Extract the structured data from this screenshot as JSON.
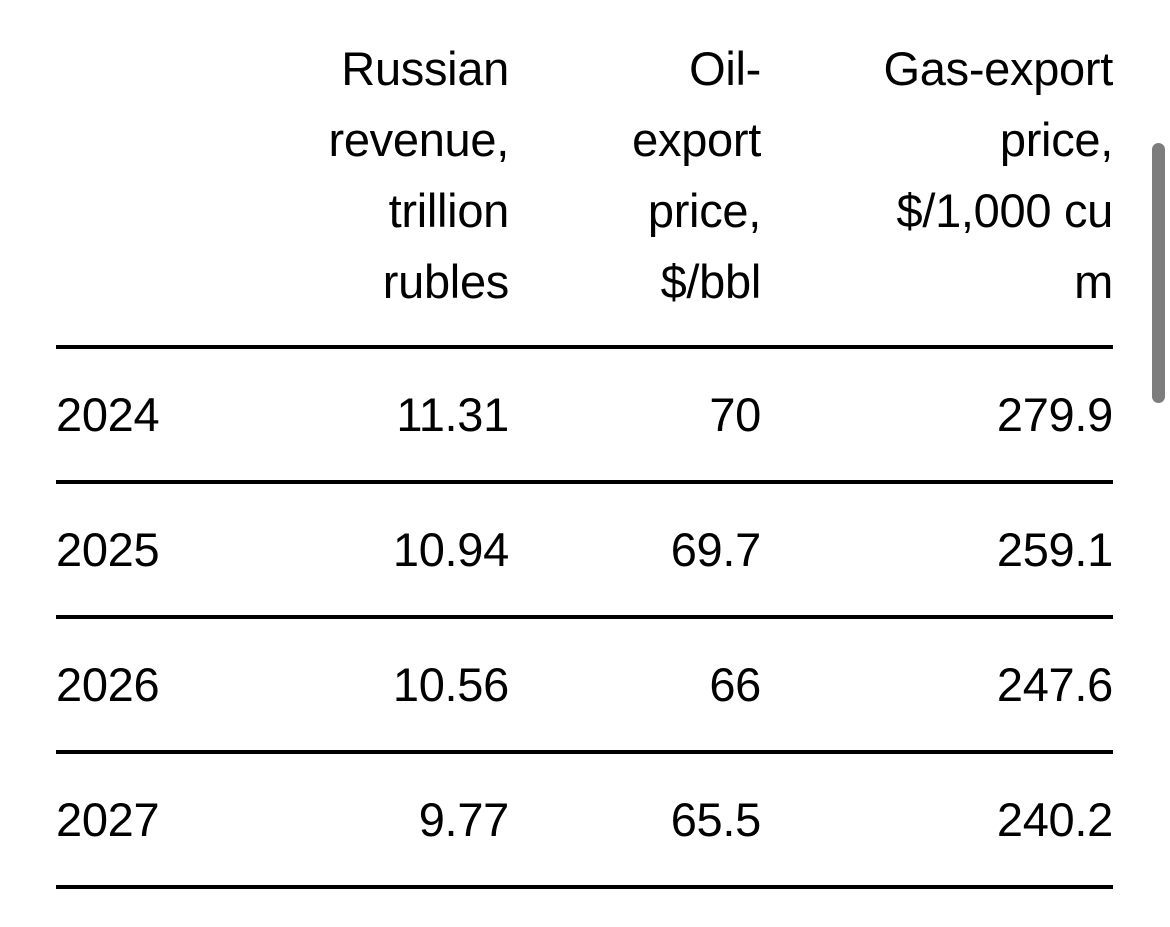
{
  "table": {
    "headers": {
      "year": "",
      "revenue": "Russian\nrevenue,\ntrillion\nrubles",
      "oil": "Oil-\nexport\nprice,\n$/bbl",
      "gas": "Gas-export\nprice,\n$/1,000 cu\nm"
    },
    "rows": [
      {
        "year": "2024",
        "revenue": "11.31",
        "oil": "70",
        "gas": "279.9"
      },
      {
        "year": "2025",
        "revenue": "10.94",
        "oil": "69.7",
        "gas": "259.1"
      },
      {
        "year": "2026",
        "revenue": "10.56",
        "oil": "66",
        "gas": "247.6"
      },
      {
        "year": "2027",
        "revenue": "9.77",
        "oil": "65.5",
        "gas": "240.2"
      }
    ]
  },
  "chart_data": {
    "type": "table",
    "columns": [
      "",
      "Russian revenue, trillion rubles",
      "Oil-export price, $/bbl",
      "Gas-export price, $/1,000 cu m"
    ],
    "rows": [
      [
        "2024",
        11.31,
        70,
        279.9
      ],
      [
        "2025",
        10.94,
        69.7,
        259.1
      ],
      [
        "2026",
        10.56,
        66,
        247.6
      ],
      [
        "2027",
        9.77,
        65.5,
        240.2
      ]
    ],
    "layout_hints": {
      "column_alignment": [
        "left",
        "right",
        "right",
        "right"
      ],
      "rules": "horizontal only",
      "grid": "off"
    }
  },
  "colors": {
    "background": "#ffffff",
    "text": "#000000",
    "rule_line": "#000000",
    "scrollbar_thumb": "#7d7d7d"
  }
}
